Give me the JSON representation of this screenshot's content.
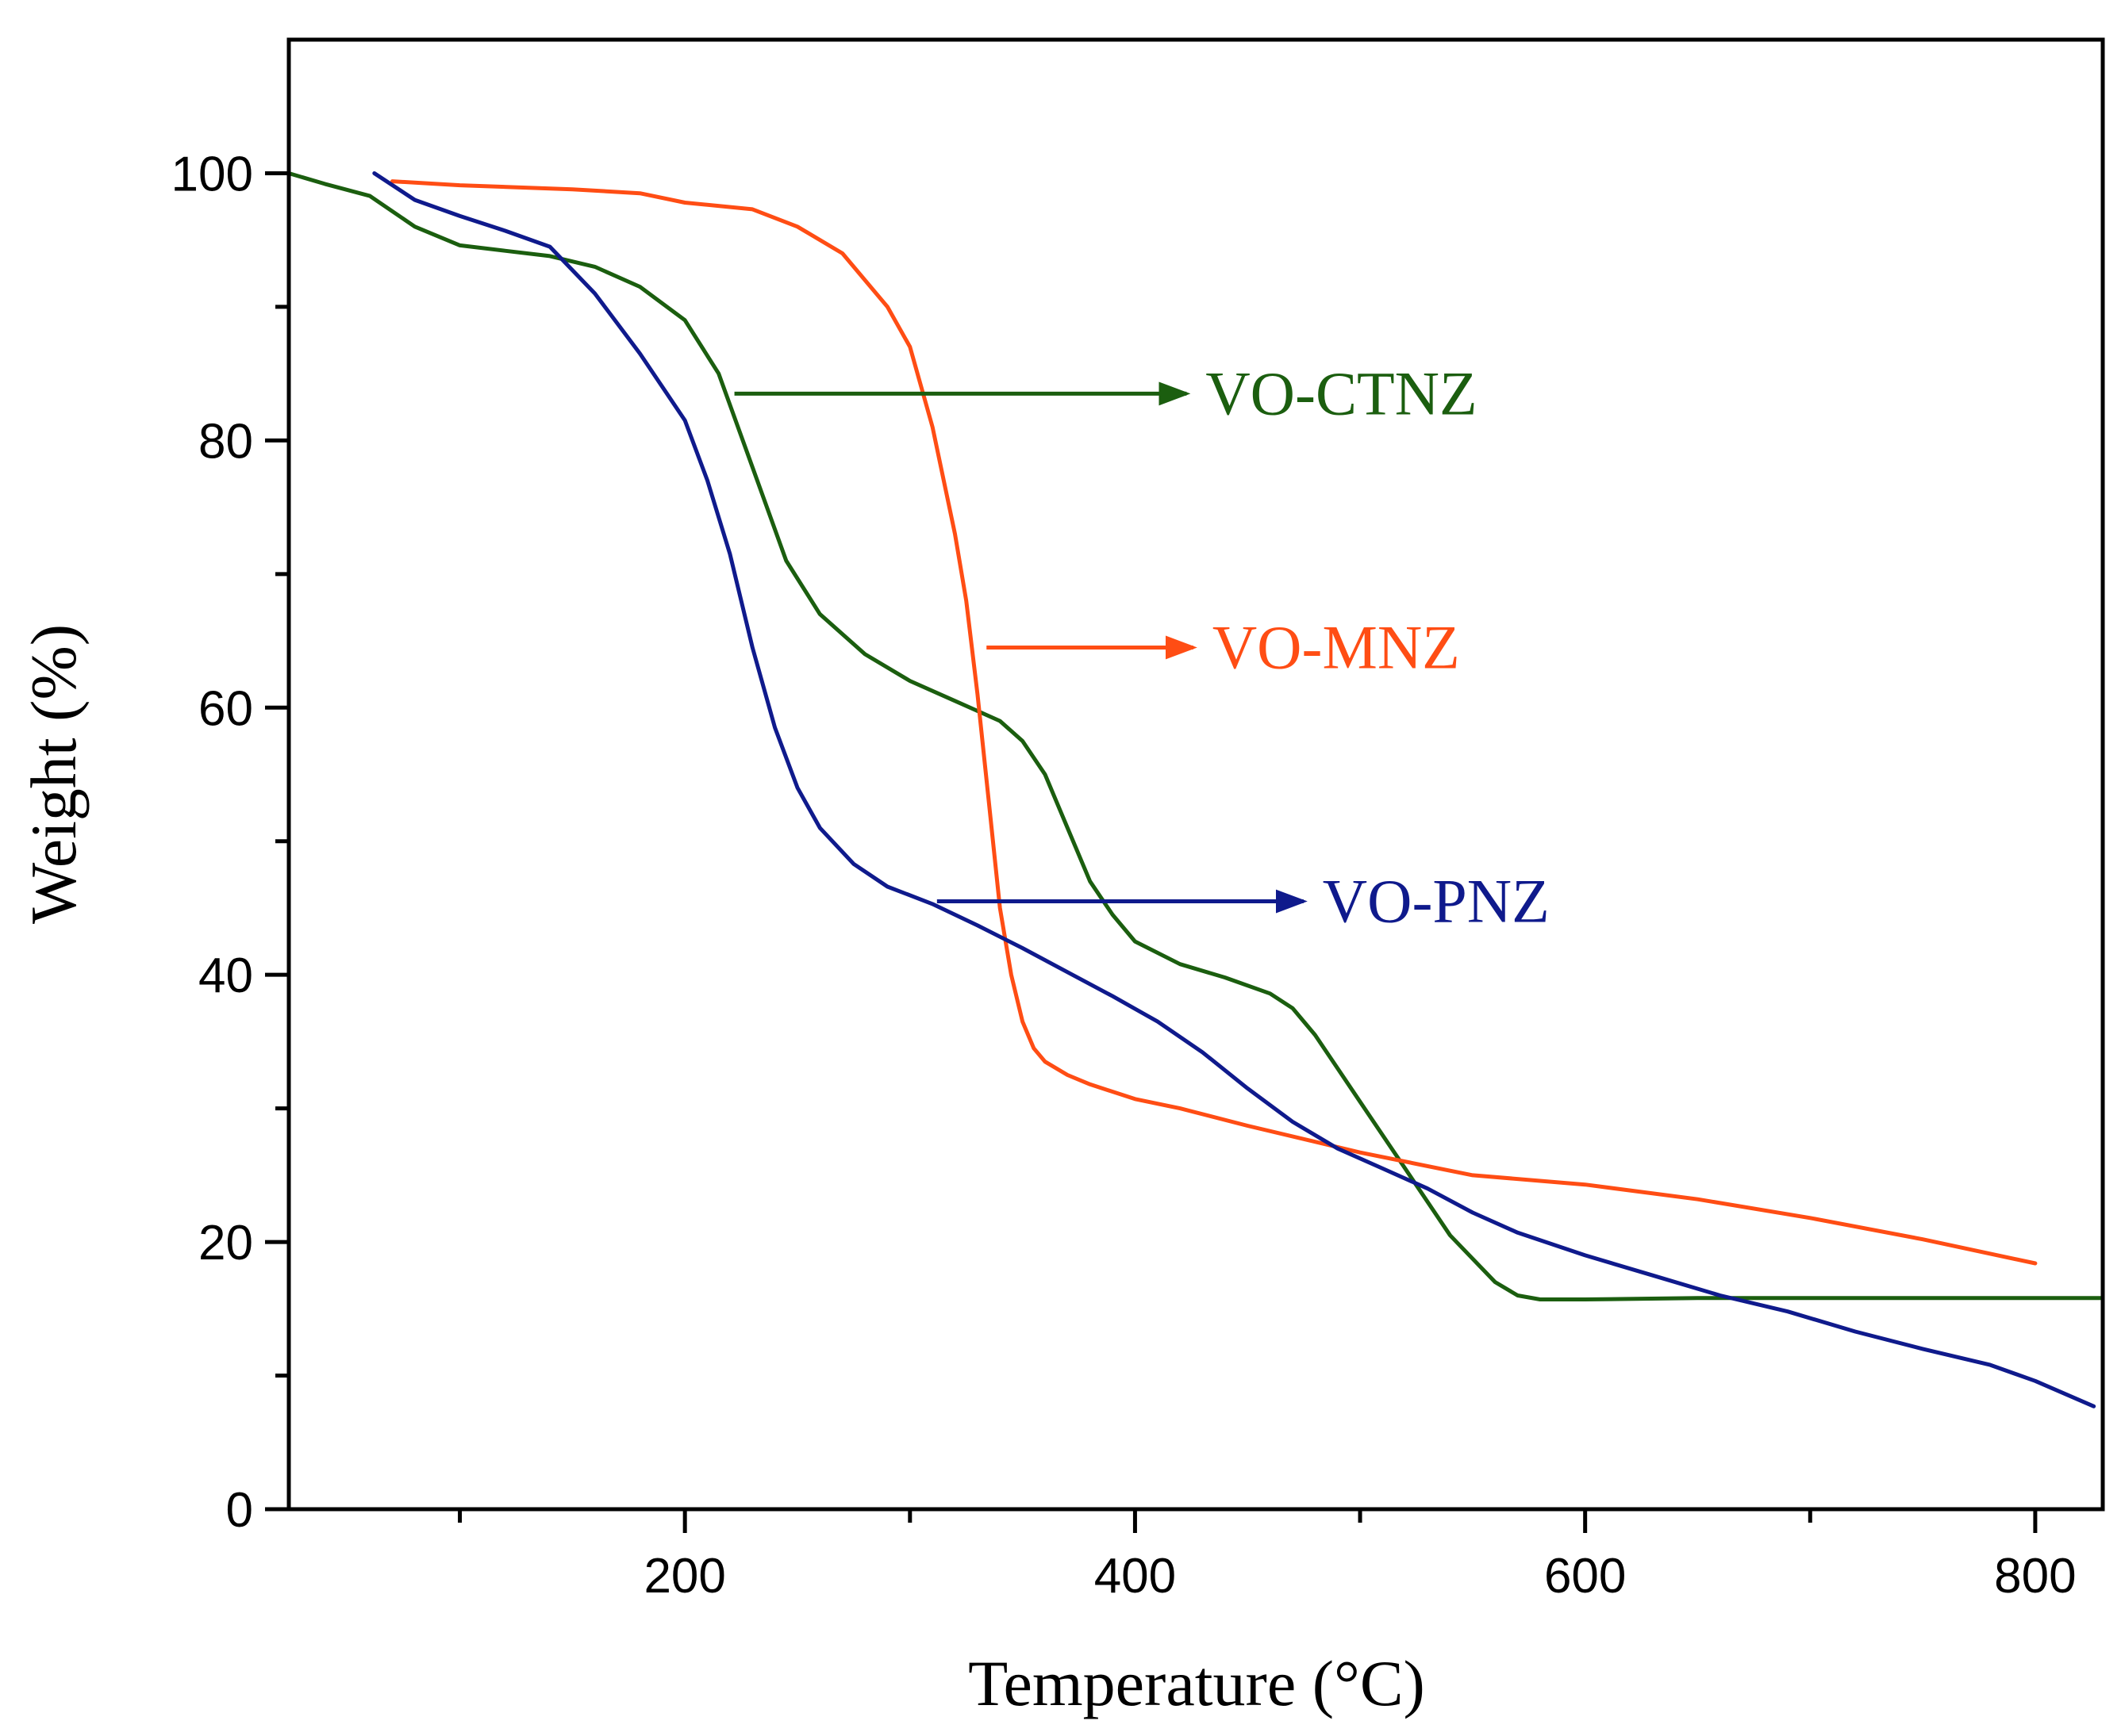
{
  "chart_data": {
    "type": "line",
    "title": "",
    "xlabel": "Temperature (°C)",
    "ylabel": "Weight (%)",
    "xlim": [
      24,
      830
    ],
    "ylim": [
      0,
      110
    ],
    "xticks": [
      200,
      400,
      600,
      800
    ],
    "xtick_labels": [
      "200",
      "400",
      "600",
      "800"
    ],
    "x_minor_ticks": [
      100,
      300,
      500,
      700
    ],
    "yticks": [
      0,
      20,
      40,
      60,
      80,
      100
    ],
    "ytick_labels": [
      "0",
      "20",
      "40",
      "60",
      "80",
      "100"
    ],
    "y_minor_ticks": [
      10,
      30,
      50,
      70,
      90
    ],
    "grid": false,
    "series": [
      {
        "name": "VO-CTNZ",
        "color": "#1b5e0f",
        "x": [
          24,
          40,
          60,
          80,
          100,
          120,
          140,
          160,
          180,
          200,
          215,
          230,
          245,
          260,
          280,
          300,
          320,
          340,
          350,
          360,
          370,
          380,
          390,
          400,
          420,
          440,
          460,
          470,
          480,
          490,
          500,
          520,
          540,
          560,
          570,
          580,
          590,
          600,
          650,
          700,
          750,
          800,
          830
        ],
        "y": [
          100,
          99.2,
          98.3,
          96,
          94.6,
          94.2,
          93.8,
          93,
          91.5,
          89,
          85,
          78,
          71,
          67,
          64,
          62,
          60.5,
          59,
          57.5,
          55,
          51,
          47,
          44.5,
          42.5,
          40.8,
          39.8,
          38.6,
          37.5,
          35.5,
          33,
          30.5,
          25.5,
          20.5,
          17,
          16,
          15.7,
          15.7,
          15.7,
          15.8,
          15.8,
          15.8,
          15.8,
          15.8
        ]
      },
      {
        "name": "VO-MNZ",
        "color": "#ff4d14",
        "x": [
          70,
          100,
          150,
          180,
          200,
          230,
          250,
          270,
          290,
          300,
          310,
          320,
          325,
          330,
          335,
          340,
          345,
          350,
          355,
          360,
          370,
          380,
          400,
          420,
          450,
          500,
          550,
          600,
          650,
          700,
          750,
          800
        ],
        "y": [
          99.4,
          99.1,
          98.8,
          98.5,
          97.8,
          97.3,
          96,
          94,
          90,
          87,
          81,
          73,
          68,
          61,
          53,
          45,
          40,
          36.5,
          34.5,
          33.5,
          32.5,
          31.8,
          30.7,
          30,
          28.7,
          26.7,
          25,
          24.3,
          23.2,
          21.8,
          20.2,
          18.4
        ]
      },
      {
        "name": "VO-PNZ",
        "color": "#0f1a8c",
        "x": [
          62,
          80,
          100,
          120,
          140,
          160,
          180,
          200,
          210,
          220,
          230,
          240,
          250,
          260,
          275,
          290,
          310,
          330,
          350,
          370,
          390,
          410,
          430,
          450,
          470,
          490,
          510,
          530,
          550,
          570,
          600,
          630,
          660,
          690,
          720,
          750,
          780,
          800,
          826
        ],
        "y": [
          100,
          98,
          96.8,
          95.7,
          94.5,
          91,
          86.5,
          81.5,
          77,
          71.5,
          64.5,
          58.5,
          54,
          51,
          48.3,
          46.6,
          45.3,
          43.7,
          42,
          40.2,
          38.4,
          36.5,
          34.2,
          31.5,
          29,
          27,
          25.5,
          24,
          22.2,
          20.7,
          19,
          17.5,
          16,
          14.8,
          13.3,
          12,
          10.8,
          9.6,
          7.7
        ]
      }
    ],
    "annotations": [
      {
        "text": "VO-CTNZ",
        "color": "#1b5e0f",
        "arrow_from": [
          222,
          83.5
        ],
        "arrow_to": [
          425,
          83.5
        ]
      },
      {
        "text": "VO-MNZ",
        "color": "#ff4d14",
        "arrow_from": [
          334,
          64.5
        ],
        "arrow_to": [
          428,
          64.5
        ]
      },
      {
        "text": "VO-PNZ",
        "color": "#0f1a8c",
        "arrow_from": [
          312,
          45.5
        ],
        "arrow_to": [
          477,
          45.5
        ]
      }
    ]
  }
}
